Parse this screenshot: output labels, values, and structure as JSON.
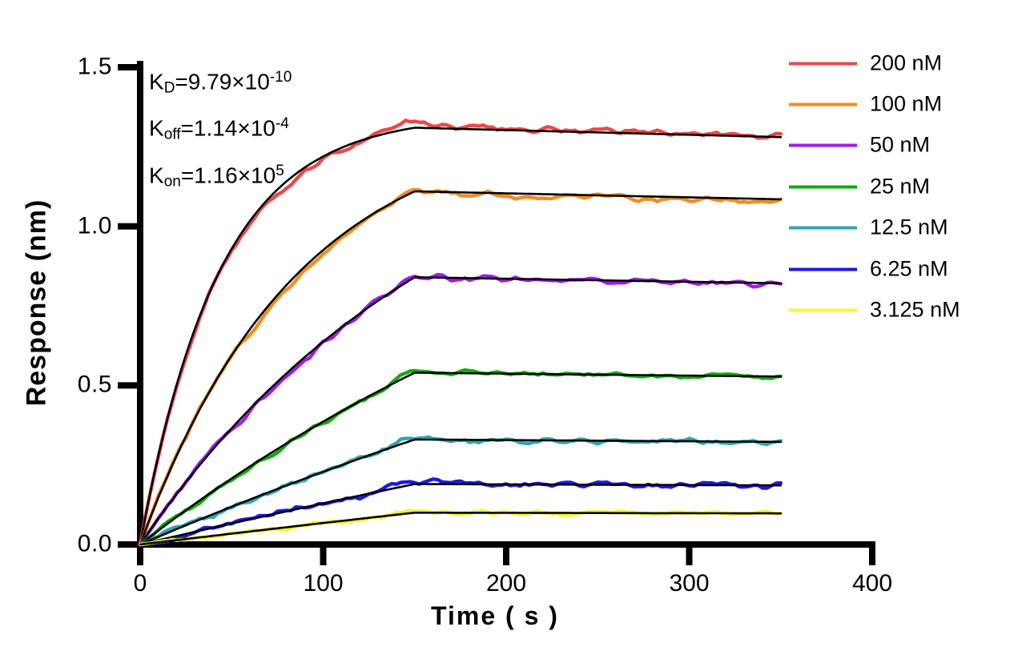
{
  "figure": {
    "background": "#ffffff"
  },
  "kinetics": {
    "lines": [
      {
        "base": "K",
        "sub": "D",
        "value": "=9.79×10",
        "exp": "-10"
      },
      {
        "base": "K",
        "sub": "off",
        "value": "=1.14×10",
        "exp": "-4"
      },
      {
        "base": "K",
        "sub": "on",
        "value": "=1.16×10",
        "exp": "5"
      }
    ]
  },
  "chart_data": {
    "type": "line",
    "title": "",
    "xlabel": "Time ( s )",
    "ylabel": "Response (nm)",
    "xlim": [
      0,
      400
    ],
    "ylim": [
      0,
      1.5
    ],
    "grid": false,
    "legend_position": "right-outside",
    "axis_color": "#000000",
    "fit_color": "#000000",
    "t_association_end": 150,
    "t_curve_end": 350,
    "fit_koff": 0.000114,
    "x_ticks": [
      {
        "label": "0",
        "value": 0
      },
      {
        "label": "100",
        "value": 100
      },
      {
        "label": "200",
        "value": 200
      },
      {
        "label": "300",
        "value": 300
      },
      {
        "label": "400",
        "value": 400
      }
    ],
    "y_ticks": [
      {
        "label": "0.0",
        "value": 0.0
      },
      {
        "label": "0.5",
        "value": 0.5
      },
      {
        "label": "1.0",
        "value": 1.0
      },
      {
        "label": "1.5",
        "value": 1.5
      }
    ],
    "sample_times_s": [
      0,
      25,
      50,
      75,
      100,
      125,
      150,
      200,
      250,
      300,
      350
    ],
    "series": [
      {
        "name": "200 nM",
        "color": "#EF4746",
        "plateau_nm": 1.31,
        "end_nm": 1.28,
        "kobs": 0.0233,
        "noise_nm": 0.007,
        "dev": {
          "mid": -0.016,
          "kink": 0.022,
          "diss": 0.004
        },
        "response_nm": [
          0,
          0.597,
          0.93,
          1.116,
          1.22,
          1.278,
          1.31,
          1.303,
          1.295,
          1.288,
          1.28
        ]
      },
      {
        "name": "100 nM",
        "color": "#F68B1F",
        "plateau_nm": 1.11,
        "end_nm": 1.085,
        "kobs": 0.0117,
        "noise_nm": 0.006,
        "dev": {
          "mid": -0.013,
          "kink": 0.008,
          "diss": -0.005
        },
        "response_nm": [
          0,
          0.34,
          0.594,
          0.784,
          0.925,
          1.031,
          1.11,
          1.104,
          1.097,
          1.091,
          1.085
        ]
      },
      {
        "name": "50 nM",
        "color": "#A21BEC",
        "plateau_nm": 0.84,
        "end_nm": 0.821,
        "kobs": 0.0059,
        "noise_nm": 0.006,
        "dev": {
          "mid": -0.006,
          "kink": 0.009,
          "diss": -0.002
        },
        "response_nm": [
          0,
          0.196,
          0.365,
          0.511,
          0.637,
          0.746,
          0.84,
          0.835,
          0.831,
          0.826,
          0.821
        ]
      },
      {
        "name": "25 nM",
        "color": "#10AC10",
        "plateau_nm": 0.54,
        "end_nm": 0.528,
        "kobs": 0.003,
        "noise_nm": 0.005,
        "dev": {
          "mid": -0.004,
          "kink": 0.006,
          "diss": 0
        },
        "response_nm": [
          0,
          0.108,
          0.208,
          0.3,
          0.386,
          0.466,
          0.54,
          0.537,
          0.534,
          0.531,
          0.528
        ]
      },
      {
        "name": "12.5 nM",
        "color": "#2EA4B4",
        "plateau_nm": 0.33,
        "end_nm": 0.323,
        "kobs": 0.00156,
        "noise_nm": 0.006,
        "dev": {
          "mid": -0.003,
          "kink": 0.01,
          "diss": 0
        },
        "response_nm": [
          0,
          0.061,
          0.119,
          0.175,
          0.228,
          0.28,
          0.33,
          0.328,
          0.326,
          0.324,
          0.323
        ]
      },
      {
        "name": "6.25 nM",
        "color": "#1A1AE0",
        "plateau_nm": 0.19,
        "end_nm": 0.186,
        "kobs": 0.00084,
        "noise_nm": 0.0065,
        "dev": {
          "mid": 0.002,
          "kink": 0.008,
          "diss": 0
        },
        "response_nm": [
          0,
          0.033,
          0.066,
          0.098,
          0.129,
          0.16,
          0.19,
          0.189,
          0.188,
          0.187,
          0.186
        ]
      },
      {
        "name": "3.125 nM",
        "color": "#FBF42B",
        "plateau_nm": 0.1,
        "end_nm": 0.098,
        "kobs": 0.00048,
        "noise_nm": 0.005,
        "dev": {
          "mid": -0.004,
          "kink": 0.005,
          "diss": 0
        },
        "response_nm": [
          0,
          0.017,
          0.034,
          0.051,
          0.068,
          0.084,
          0.1,
          0.099,
          0.099,
          0.098,
          0.098
        ]
      }
    ]
  }
}
